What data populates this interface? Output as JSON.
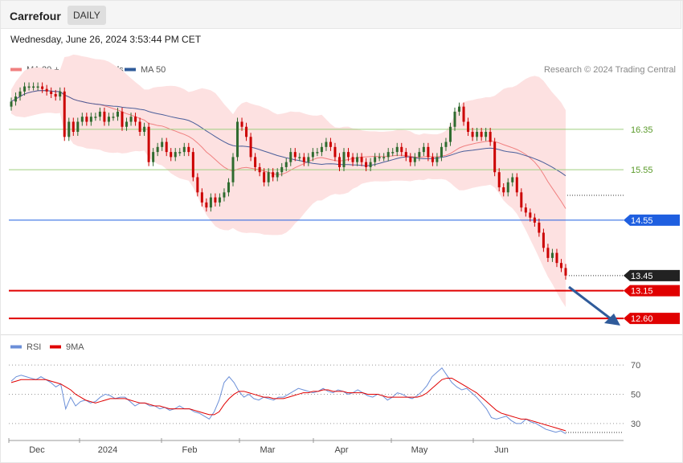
{
  "header": {
    "symbol": "Carrefour",
    "period": "DAILY"
  },
  "timestamp": "Wednesday, June 26, 2024 3:53:44 PM CET",
  "legend_top": [
    {
      "label": "MA 20 + Bollinger Bands",
      "color": "#f08080"
    },
    {
      "label": "MA 50",
      "color": "#2f5b9a"
    }
  ],
  "legend_bottom": [
    {
      "label": "RSI",
      "color": "#6b8fd8"
    },
    {
      "label": "9MA",
      "color": "#e00000"
    }
  ],
  "credit": "Research © 2024 Trading Central",
  "colors": {
    "up": "#2f6b2f",
    "down": "#cc0000",
    "band": "#fde1e1",
    "ma20": "#f08080",
    "ma50": "#4a5e9a",
    "resistance": "#9fcf7f",
    "pivot": "#1f5fe0",
    "support": "#e00000",
    "arrow": "#2f5b9a",
    "rsi": "#6b8fd8",
    "rsi_ma": "#e00000"
  },
  "chart_data": {
    "type": "candlestick",
    "y_range": [
      12.3,
      17.4
    ],
    "levels": [
      {
        "value": 16.35,
        "label": "16.35",
        "kind": "resistance"
      },
      {
        "value": 15.55,
        "label": "15.55",
        "kind": "resistance"
      },
      {
        "value": 14.55,
        "label": "14.55",
        "kind": "pivot"
      },
      {
        "value": 13.45,
        "label": "13.45",
        "kind": "last"
      },
      {
        "value": 13.15,
        "label": "13.15",
        "kind": "support"
      },
      {
        "value": 12.6,
        "label": "12.60",
        "kind": "support"
      }
    ],
    "x_labels": [
      "Dec",
      "2024",
      "Feb",
      "Mar",
      "Apr",
      "May",
      "Jun"
    ],
    "closes": [
      16.9,
      17.0,
      17.1,
      17.2,
      17.2,
      17.2,
      17.2,
      17.15,
      17.1,
      17.05,
      17.0,
      17.1,
      16.2,
      16.5,
      16.3,
      16.5,
      16.6,
      16.5,
      16.6,
      16.6,
      16.7,
      16.5,
      16.6,
      16.6,
      16.7,
      16.4,
      16.5,
      16.6,
      16.5,
      16.3,
      16.4,
      15.7,
      15.9,
      16.0,
      16.1,
      15.9,
      15.8,
      15.9,
      15.9,
      16.0,
      15.9,
      15.4,
      15.1,
      14.9,
      14.8,
      15.0,
      14.9,
      15.0,
      15.1,
      15.3,
      15.8,
      16.5,
      16.4,
      16.2,
      15.8,
      15.6,
      15.5,
      15.3,
      15.5,
      15.4,
      15.5,
      15.6,
      15.7,
      15.9,
      15.8,
      15.8,
      15.7,
      15.8,
      15.9,
      15.9,
      16.0,
      16.1,
      16.0,
      15.8,
      15.6,
      15.9,
      15.8,
      15.7,
      15.8,
      15.7,
      15.6,
      15.7,
      15.8,
      15.8,
      15.8,
      15.9,
      15.9,
      16.0,
      15.9,
      15.8,
      15.7,
      15.8,
      15.9,
      16.0,
      15.8,
      15.7,
      15.8,
      16.0,
      16.1,
      16.4,
      16.7,
      16.8,
      16.5,
      16.3,
      16.2,
      16.3,
      16.2,
      16.3,
      16.1,
      15.5,
      15.2,
      15.1,
      15.3,
      15.4,
      15.1,
      14.8,
      14.7,
      14.6,
      14.5,
      14.3,
      14.0,
      13.8,
      13.9,
      13.7,
      13.6,
      13.45
    ],
    "rsi": {
      "levels": [
        70,
        50,
        30
      ],
      "values": [
        59,
        62,
        63,
        62,
        61,
        60,
        62,
        60,
        58,
        55,
        57,
        40,
        48,
        42,
        45,
        46,
        44,
        45,
        48,
        50,
        49,
        47,
        48,
        48,
        45,
        42,
        44,
        44,
        42,
        42,
        40,
        41,
        39,
        40,
        42,
        40,
        40,
        38,
        37,
        35,
        33,
        38,
        46,
        58,
        62,
        58,
        52,
        48,
        50,
        47,
        46,
        48,
        47,
        46,
        48,
        48,
        50,
        52,
        54,
        53,
        52,
        51,
        52,
        54,
        52,
        51,
        53,
        52,
        50,
        51,
        53,
        51,
        49,
        48,
        50,
        49,
        46,
        48,
        51,
        50,
        48,
        47,
        49,
        52,
        56,
        62,
        65,
        68,
        63,
        58,
        55,
        53,
        54,
        51,
        48,
        44,
        40,
        34,
        33,
        34,
        35,
        32,
        30,
        30,
        33,
        31,
        30,
        28,
        26,
        25,
        24,
        25,
        23
      ],
      "ma": [
        58,
        59,
        60,
        60,
        60,
        60,
        60,
        60,
        59,
        58,
        57,
        55,
        53,
        50,
        48,
        46,
        45,
        44,
        45,
        46,
        47,
        47,
        47,
        47,
        46,
        45,
        44,
        44,
        43,
        42,
        42,
        41,
        40,
        40,
        40,
        40,
        40,
        39,
        38,
        37,
        36,
        36,
        38,
        43,
        47,
        50,
        52,
        52,
        51,
        50,
        49,
        48,
        48,
        47,
        47,
        47,
        48,
        49,
        50,
        51,
        51,
        52,
        52,
        53,
        53,
        52,
        52,
        52,
        51,
        51,
        51,
        51,
        50,
        50,
        50,
        49,
        48,
        48,
        48,
        48,
        48,
        48,
        48,
        49,
        51,
        54,
        57,
        60,
        61,
        61,
        59,
        57,
        55,
        53,
        51,
        48,
        45,
        42,
        39,
        37,
        36,
        35,
        34,
        33,
        33,
        32,
        31,
        30,
        29,
        28,
        27,
        26,
        25
      ]
    }
  }
}
